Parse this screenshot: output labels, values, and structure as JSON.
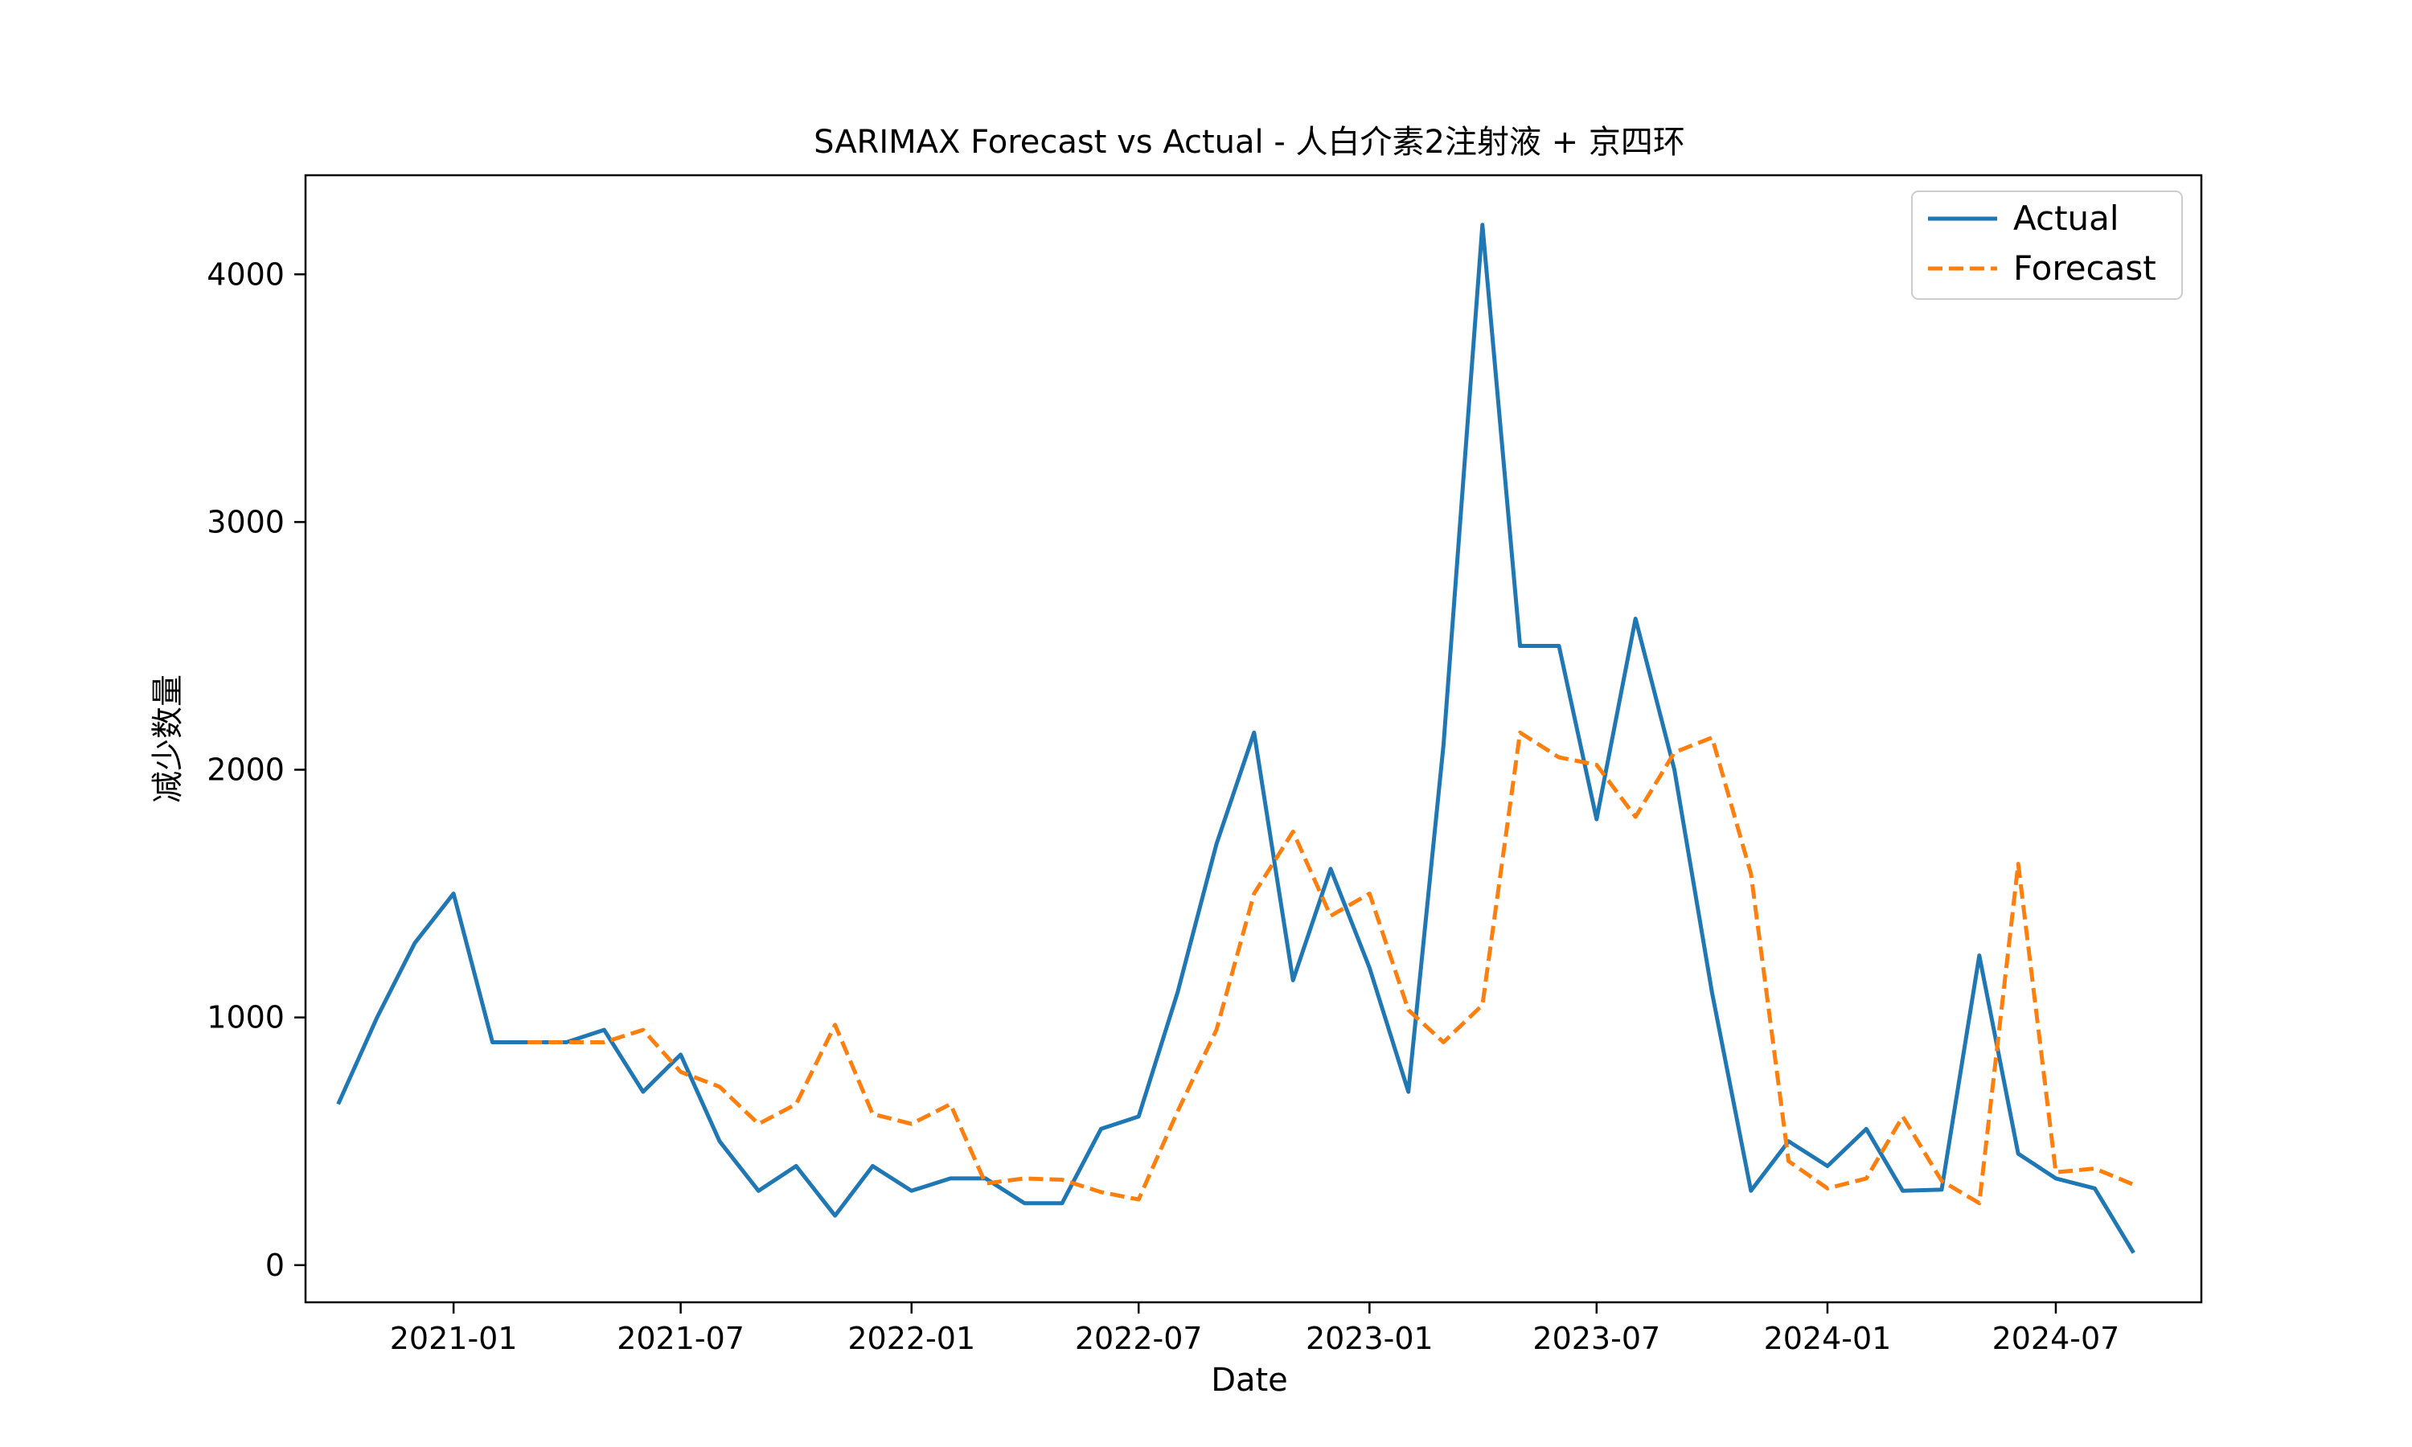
{
  "chart_data": {
    "type": "line",
    "title": "SARIMAX Forecast vs Actual - 人白介素2注射液 + 京四环",
    "xlabel": "Date",
    "ylabel": "减少数量",
    "xlim": [
      "2020-09-05",
      "2024-10-25"
    ],
    "ylim": [
      -150,
      4400
    ],
    "x_ticks": [
      {
        "date": "2021-01-01",
        "label": "2021-01"
      },
      {
        "date": "2021-07-01",
        "label": "2021-07"
      },
      {
        "date": "2022-01-01",
        "label": "2022-01"
      },
      {
        "date": "2022-07-01",
        "label": "2022-07"
      },
      {
        "date": "2023-01-01",
        "label": "2023-01"
      },
      {
        "date": "2023-07-01",
        "label": "2023-07"
      },
      {
        "date": "2024-01-01",
        "label": "2024-01"
      },
      {
        "date": "2024-07-01",
        "label": "2024-07"
      }
    ],
    "y_ticks": [
      {
        "value": 0,
        "label": "0"
      },
      {
        "value": 1000,
        "label": "1000"
      },
      {
        "value": 2000,
        "label": "2000"
      },
      {
        "value": 3000,
        "label": "3000"
      },
      {
        "value": 4000,
        "label": "4000"
      }
    ],
    "grid": false,
    "legend_position": "top-right",
    "series": [
      {
        "name": "Actual",
        "color": "#1f77b4",
        "style": "solid",
        "points": [
          [
            "2020-10-01",
            650
          ],
          [
            "2020-11-01",
            1000
          ],
          [
            "2020-12-01",
            1300
          ],
          [
            "2021-01-01",
            1500
          ],
          [
            "2021-02-01",
            900
          ],
          [
            "2021-03-01",
            900
          ],
          [
            "2021-04-01",
            900
          ],
          [
            "2021-05-01",
            950
          ],
          [
            "2021-06-01",
            700
          ],
          [
            "2021-07-01",
            850
          ],
          [
            "2021-08-01",
            500
          ],
          [
            "2021-09-01",
            300
          ],
          [
            "2021-10-01",
            400
          ],
          [
            "2021-11-01",
            200
          ],
          [
            "2021-12-01",
            400
          ],
          [
            "2022-01-01",
            300
          ],
          [
            "2022-02-01",
            350
          ],
          [
            "2022-03-01",
            350
          ],
          [
            "2022-04-01",
            250
          ],
          [
            "2022-05-01",
            250
          ],
          [
            "2022-06-01",
            550
          ],
          [
            "2022-07-01",
            600
          ],
          [
            "2022-08-01",
            1100
          ],
          [
            "2022-09-01",
            1700
          ],
          [
            "2022-10-01",
            2150
          ],
          [
            "2022-11-01",
            1150
          ],
          [
            "2022-12-01",
            1600
          ],
          [
            "2023-01-01",
            1200
          ],
          [
            "2023-02-01",
            700
          ],
          [
            "2023-03-01",
            2100
          ],
          [
            "2023-04-01",
            4200
          ],
          [
            "2023-05-01",
            2500
          ],
          [
            "2023-06-01",
            2500
          ],
          [
            "2023-07-01",
            1800
          ],
          [
            "2023-08-01",
            2610
          ],
          [
            "2023-09-01",
            2000
          ],
          [
            "2023-10-01",
            1100
          ],
          [
            "2023-11-01",
            300
          ],
          [
            "2023-12-01",
            500
          ],
          [
            "2024-01-01",
            400
          ],
          [
            "2024-02-01",
            550
          ],
          [
            "2024-03-01",
            300
          ],
          [
            "2024-04-01",
            305
          ],
          [
            "2024-05-01",
            1250
          ],
          [
            "2024-06-01",
            450
          ],
          [
            "2024-07-01",
            350
          ],
          [
            "2024-08-01",
            310
          ],
          [
            "2024-09-01",
            50
          ]
        ]
      },
      {
        "name": "Forecast",
        "color": "#ff7f0e",
        "style": "dashed",
        "points": [
          [
            "2021-03-01",
            900
          ],
          [
            "2021-04-01",
            900
          ],
          [
            "2021-05-01",
            900
          ],
          [
            "2021-06-01",
            950
          ],
          [
            "2021-07-01",
            780
          ],
          [
            "2021-08-01",
            720
          ],
          [
            "2021-09-01",
            570
          ],
          [
            "2021-10-01",
            650
          ],
          [
            "2021-11-01",
            970
          ],
          [
            "2021-12-01",
            610
          ],
          [
            "2022-01-01",
            570
          ],
          [
            "2022-02-01",
            650
          ],
          [
            "2022-03-01",
            330
          ],
          [
            "2022-04-01",
            350
          ],
          [
            "2022-05-01",
            345
          ],
          [
            "2022-06-01",
            295
          ],
          [
            "2022-07-01",
            265
          ],
          [
            "2022-08-01",
            620
          ],
          [
            "2022-09-01",
            950
          ],
          [
            "2022-10-01",
            1500
          ],
          [
            "2022-11-01",
            1750
          ],
          [
            "2022-12-01",
            1410
          ],
          [
            "2023-01-01",
            1500
          ],
          [
            "2023-02-01",
            1030
          ],
          [
            "2023-03-01",
            900
          ],
          [
            "2023-04-01",
            1050
          ],
          [
            "2023-05-01",
            2150
          ],
          [
            "2023-06-01",
            2050
          ],
          [
            "2023-07-01",
            2020
          ],
          [
            "2023-08-01",
            1810
          ],
          [
            "2023-09-01",
            2070
          ],
          [
            "2023-10-01",
            2130
          ],
          [
            "2023-11-01",
            1580
          ],
          [
            "2023-12-01",
            420
          ],
          [
            "2024-01-01",
            310
          ],
          [
            "2024-02-01",
            350
          ],
          [
            "2024-03-01",
            600
          ],
          [
            "2024-04-01",
            340
          ],
          [
            "2024-05-01",
            250
          ],
          [
            "2024-06-01",
            1620
          ],
          [
            "2024-07-01",
            375
          ],
          [
            "2024-08-01",
            390
          ],
          [
            "2024-09-01",
            325
          ]
        ]
      }
    ]
  }
}
